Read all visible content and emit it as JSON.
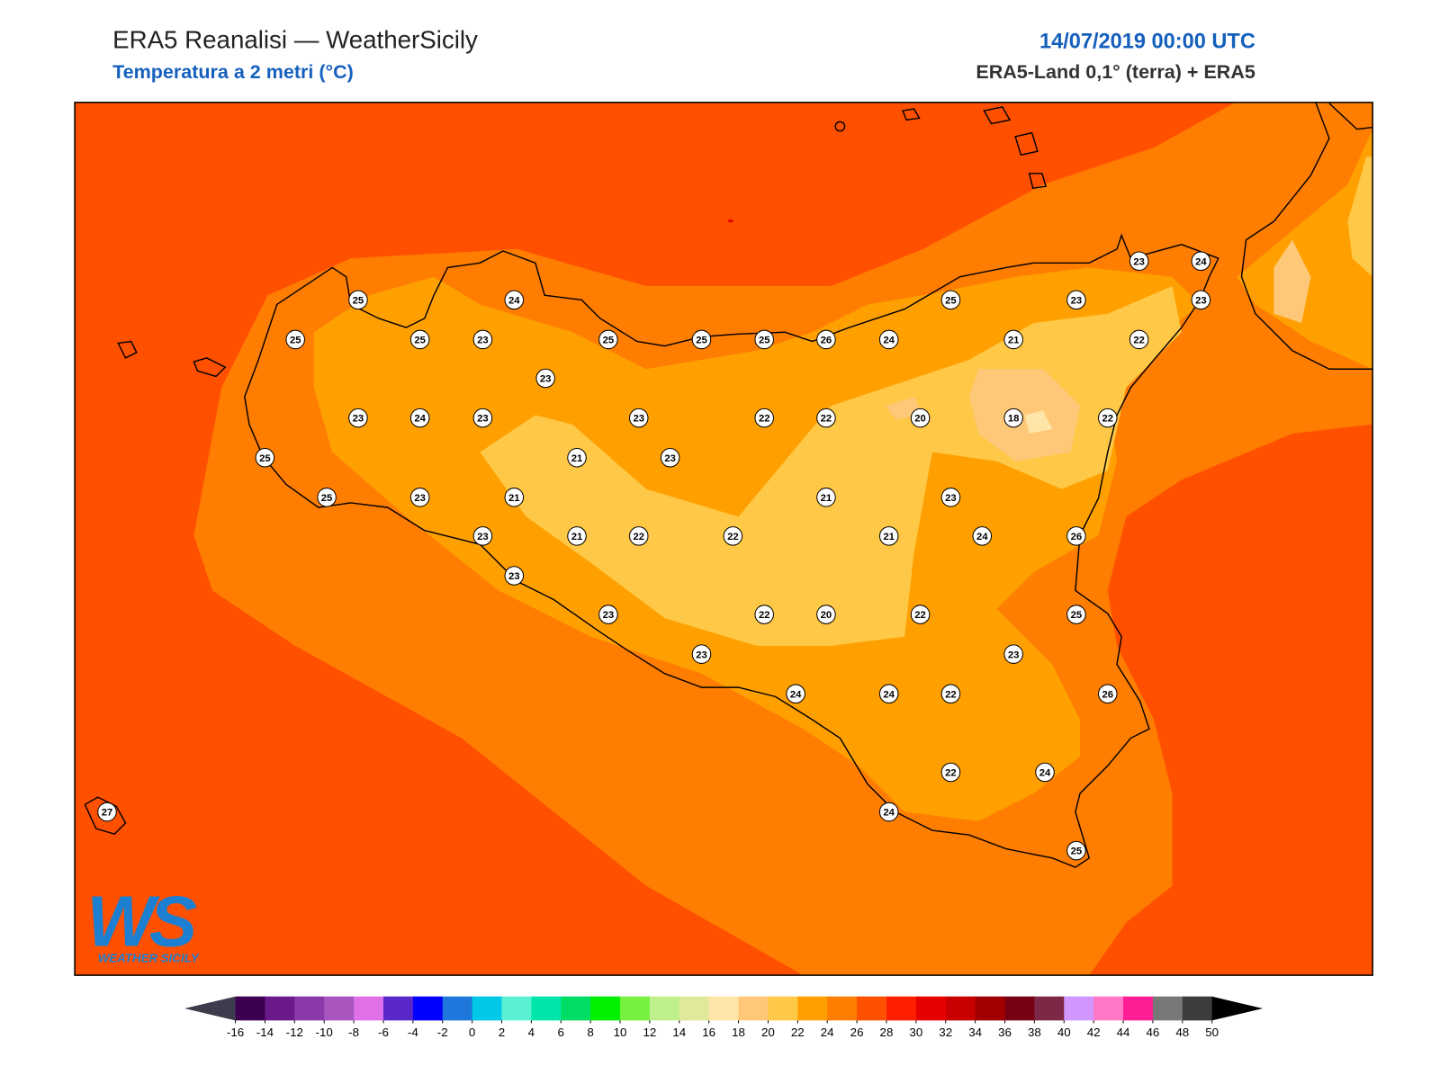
{
  "header": {
    "title": "ERA5 Reanalisi — WeatherSicily",
    "subtitle": "Temperatura a 2 metri (°C)",
    "datetime": "14/07/2019 00:00 UTC",
    "source": "ERA5-Land 0,1° (terra) + ERA5"
  },
  "logo": {
    "mark": "WS",
    "name": "WEATHER SICILY"
  },
  "stations": [
    25,
    24,
    25,
    25,
    23,
    25,
    25,
    25,
    26,
    24,
    25,
    23,
    23,
    24,
    23,
    21,
    22,
    23,
    23,
    24,
    23,
    23,
    22,
    22,
    20,
    18,
    22,
    25,
    21,
    23,
    25,
    23,
    21,
    21,
    23,
    23,
    21,
    22,
    22,
    21,
    24,
    26,
    23,
    23,
    22,
    20,
    22,
    25,
    23,
    23,
    24,
    24,
    22,
    26,
    22,
    24,
    24,
    25,
    27
  ],
  "colorbar": {
    "ticks": [
      -16,
      -14,
      -12,
      -10,
      -8,
      -6,
      -4,
      -2,
      0,
      2,
      4,
      6,
      8,
      10,
      12,
      14,
      16,
      18,
      20,
      22,
      24,
      26,
      28,
      30,
      32,
      34,
      36,
      38,
      40,
      42,
      44,
      46,
      48,
      50
    ],
    "colors": [
      "#3d0050",
      "#6a1a8a",
      "#8a3aa8",
      "#a855c0",
      "#e070e8",
      "#5a28c8",
      "#0000ff",
      "#1e78dc",
      "#00c8e6",
      "#5af0d2",
      "#00e6aa",
      "#00dc64",
      "#00f000",
      "#78f040",
      "#c0f08c",
      "#e0e89a",
      "#ffe6a8",
      "#ffc878",
      "#ffc846",
      "#ffa000",
      "#ff7d00",
      "#ff5000",
      "#ff1e00",
      "#e60000",
      "#c80000",
      "#a00000",
      "#780014",
      "#7d2846",
      "#d296ff",
      "#ff78c8",
      "#ff1e96",
      "#787878",
      "#3c3c3c"
    ],
    "extend_colors": [
      "#3c3c4c",
      "#000000"
    ]
  }
}
